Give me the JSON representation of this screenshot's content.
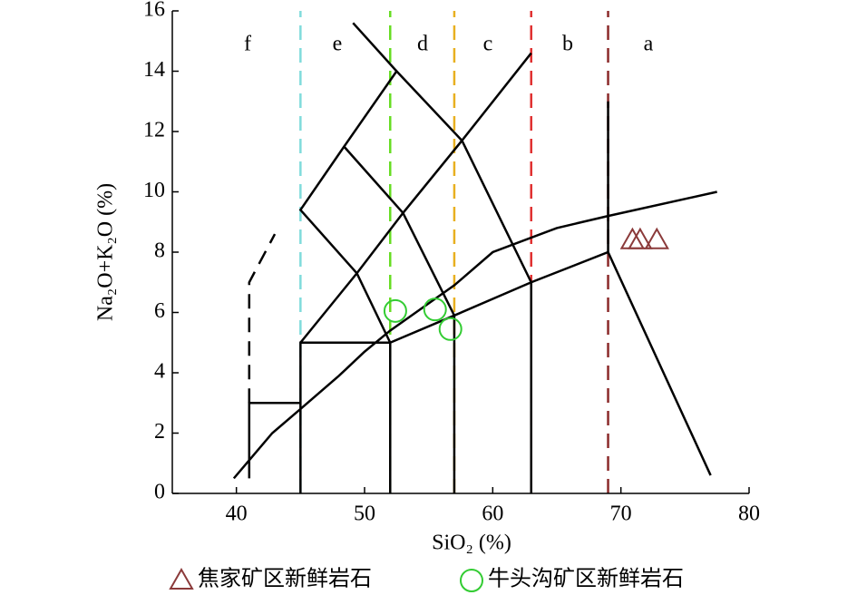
{
  "chart_data": {
    "type": "scatter",
    "xlabel": "SiO₂ (%)",
    "ylabel": "Na₂O+K₂O (%)",
    "xlim": [
      35,
      80
    ],
    "ylim": [
      0,
      16
    ],
    "xticks": [
      40,
      50,
      60,
      70,
      80
    ],
    "yticks": [
      0,
      2,
      4,
      6,
      8,
      10,
      12,
      14,
      16
    ],
    "regions": [
      "f",
      "e",
      "d",
      "c",
      "b",
      "a"
    ],
    "guides": [
      {
        "x": 45,
        "color": "#80dcdc"
      },
      {
        "x": 52,
        "color": "#66dd22"
      },
      {
        "x": 57,
        "color": "#e8b020"
      },
      {
        "x": 63,
        "color": "#e03030"
      },
      {
        "x": 69,
        "color": "#8b2a2a"
      }
    ],
    "field_lines": [
      {
        "dash": false,
        "points": [
          [
            41,
            0.5
          ],
          [
            41,
            3
          ],
          [
            45,
            3
          ]
        ]
      },
      {
        "dash": true,
        "points": [
          [
            41,
            3
          ],
          [
            41,
            7
          ],
          [
            43,
            8.6
          ]
        ]
      },
      {
        "dash": false,
        "points": [
          [
            45,
            0
          ],
          [
            45,
            5
          ],
          [
            52,
            5
          ],
          [
            52,
            0
          ]
        ]
      },
      {
        "dash": false,
        "points": [
          [
            45,
            5
          ],
          [
            49.4,
            7.3
          ],
          [
            53,
            9.3
          ],
          [
            57.6,
            11.7
          ],
          [
            63,
            14.6
          ]
        ]
      },
      {
        "dash": false,
        "points": [
          [
            52,
            5
          ],
          [
            49.4,
            7.3
          ],
          [
            45,
            9.4
          ],
          [
            48.4,
            11.5
          ],
          [
            52.5,
            14
          ],
          [
            57.6,
            11.7
          ],
          [
            63,
            7
          ],
          [
            63,
            0
          ]
        ]
      },
      {
        "dash": false,
        "points": [
          [
            49.1,
            15.6
          ],
          [
            52.5,
            14
          ]
        ]
      },
      {
        "dash": false,
        "points": [
          [
            48.4,
            11.5
          ],
          [
            53,
            9.3
          ],
          [
            57,
            5.9
          ],
          [
            57,
            0
          ]
        ]
      },
      {
        "dash": false,
        "points": [
          [
            52,
            5
          ],
          [
            57,
            5.9
          ],
          [
            63,
            7
          ],
          [
            69,
            8
          ],
          [
            77,
            0.6
          ]
        ]
      },
      {
        "dash": false,
        "points": [
          [
            69,
            8
          ],
          [
            69,
            13
          ]
        ]
      },
      {
        "dash": false,
        "points": [
          [
            39.8,
            0.5
          ],
          [
            42.8,
            2
          ],
          [
            45,
            2.8
          ],
          [
            48,
            3.9
          ],
          [
            50,
            4.7
          ],
          [
            52,
            5.4
          ],
          [
            55,
            6.3
          ],
          [
            57,
            6.9
          ],
          [
            60,
            8
          ],
          [
            65,
            8.8
          ],
          [
            69,
            9.2
          ],
          [
            77.5,
            10
          ]
        ]
      }
    ],
    "series": [
      {
        "name": "焦家矿区新鲜岩石",
        "marker": "triangle",
        "color": "#8b3a3a",
        "x": [
          70.9,
          71.5,
          72.8
        ],
        "values": [
          8.4,
          8.4,
          8.4
        ]
      },
      {
        "name": "牛头沟矿区新鲜岩石",
        "marker": "circle",
        "color": "#33cc33",
        "x": [
          52.4,
          55.5,
          56.7
        ],
        "values": [
          6.05,
          6.1,
          5.45
        ]
      }
    ]
  }
}
